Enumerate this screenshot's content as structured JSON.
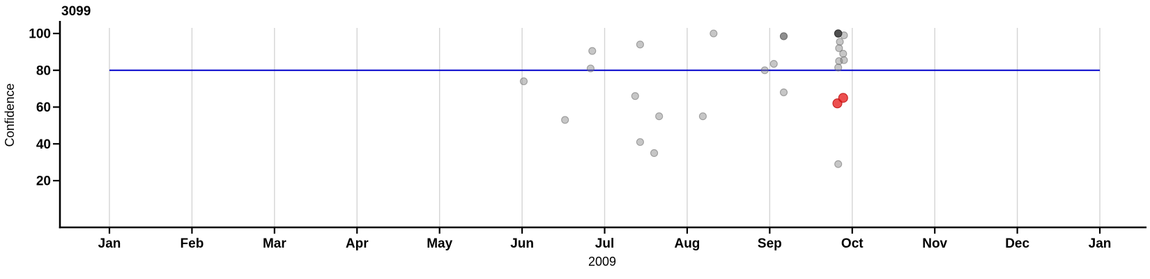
{
  "chart_data": {
    "type": "scatter",
    "title": "3099",
    "ylabel": "Confidence",
    "xlabel_year": "2009",
    "x_ticks": [
      "Jan",
      "Feb",
      "Mar",
      "Apr",
      "May",
      "Jun",
      "Jul",
      "Aug",
      "Sep",
      "Oct",
      "Nov",
      "Dec",
      "Jan"
    ],
    "y_ticks": [
      20,
      40,
      60,
      80,
      100
    ],
    "x_range_months": [
      1,
      13
    ],
    "grid": "vertical-monthly",
    "legend": "none",
    "reference_line": {
      "y": 80,
      "color": "#0000cc"
    },
    "colors": {
      "gray_fill": "rgba(128,128,128,0.45)",
      "gray_stroke": "rgba(100,100,100,0.55)",
      "medium_fill": "#8f8f8f",
      "medium_stroke": "#6e6e6e",
      "dark_fill": "#4f4f4f",
      "dark_stroke": "#303030",
      "red_fill": "rgba(231,30,30,0.78)",
      "red_stroke": "rgba(190,15,15,0.85)",
      "grid": "#d4d4d4",
      "axis": "#000000"
    },
    "points": [
      {
        "month": 6.02,
        "confidence": 74,
        "shade": "gray"
      },
      {
        "month": 6.52,
        "confidence": 53,
        "shade": "gray"
      },
      {
        "month": 6.83,
        "confidence": 81,
        "shade": "gray"
      },
      {
        "month": 6.85,
        "confidence": 90.5,
        "shade": "gray"
      },
      {
        "month": 7.37,
        "confidence": 66,
        "shade": "gray"
      },
      {
        "month": 7.43,
        "confidence": 94,
        "shade": "gray"
      },
      {
        "month": 7.43,
        "confidence": 41,
        "shade": "gray"
      },
      {
        "month": 7.6,
        "confidence": 35,
        "shade": "gray"
      },
      {
        "month": 7.66,
        "confidence": 55,
        "shade": "gray"
      },
      {
        "month": 8.19,
        "confidence": 55,
        "shade": "gray"
      },
      {
        "month": 8.32,
        "confidence": 100,
        "shade": "gray"
      },
      {
        "month": 8.94,
        "confidence": 80,
        "shade": "gray"
      },
      {
        "month": 9.05,
        "confidence": 83.5,
        "shade": "gray"
      },
      {
        "month": 9.17,
        "confidence": 68,
        "shade": "gray"
      },
      {
        "month": 9.17,
        "confidence": 98.5,
        "shade": "medium"
      },
      {
        "month": 9.83,
        "confidence": 29,
        "shade": "gray"
      },
      {
        "month": 9.9,
        "confidence": 99,
        "shade": "gray"
      },
      {
        "month": 9.85,
        "confidence": 95.5,
        "shade": "gray"
      },
      {
        "month": 9.84,
        "confidence": 92,
        "shade": "gray"
      },
      {
        "month": 9.89,
        "confidence": 89,
        "shade": "gray"
      },
      {
        "month": 9.84,
        "confidence": 85,
        "shade": "gray"
      },
      {
        "month": 9.9,
        "confidence": 85.5,
        "shade": "gray"
      },
      {
        "month": 9.83,
        "confidence": 81.5,
        "shade": "gray"
      },
      {
        "month": 9.83,
        "confidence": 100,
        "shade": "dark"
      },
      {
        "month": 9.82,
        "confidence": 62,
        "shade": "red"
      },
      {
        "month": 9.89,
        "confidence": 65,
        "shade": "red"
      }
    ]
  }
}
